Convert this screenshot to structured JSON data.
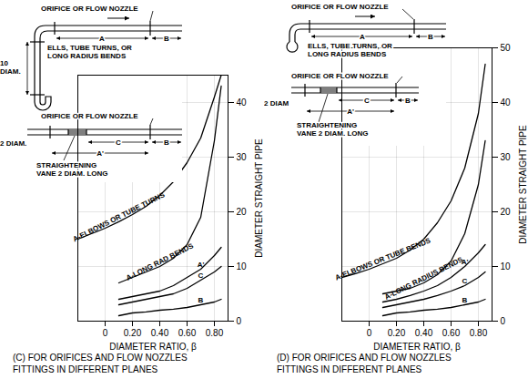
{
  "chart_data": [
    {
      "type": "line",
      "title": "(C) FOR ORIFICES AND FLOW NOZZLES\nFITTINGS IN DIFFERENT PLANES",
      "x_label": "DIAMETER RATIO, β",
      "y_label": "DIAMETER STRAIGHT PIPE",
      "x": [
        -0.2,
        -0.1,
        0,
        0.1,
        0.2,
        0.3,
        0.4,
        0.5,
        0.6,
        0.7,
        0.8,
        0.85
      ],
      "series": [
        {
          "name": "A-ELBOWS OR TUBE TURNS",
          "color": "#000000",
          "values": [
            15,
            16,
            17,
            18.2,
            19.5,
            21,
            23,
            25.5,
            29,
            33.5,
            41,
            45
          ]
        },
        {
          "name": "A-LONG RAD BENDS",
          "color": "#000000",
          "values": [
            null,
            null,
            null,
            7,
            8,
            9,
            10,
            11.5,
            14,
            19,
            33,
            43
          ]
        },
        {
          "name": "A'",
          "color": "#000000",
          "values": [
            null,
            null,
            null,
            4,
            4.5,
            5,
            5.5,
            6.5,
            8,
            9.5,
            12,
            13.5
          ]
        },
        {
          "name": "C",
          "color": "#000000",
          "values": [
            null,
            null,
            null,
            3,
            3.5,
            4,
            4.5,
            5,
            6,
            7.5,
            9,
            10
          ]
        },
        {
          "name": "B",
          "color": "#000000",
          "values": [
            null,
            null,
            null,
            1,
            1.5,
            1.7,
            2,
            2.2,
            2.5,
            3,
            3.5,
            4
          ]
        }
      ],
      "xlim": [
        -0.2,
        0.9
      ],
      "ylim": [
        0,
        45
      ],
      "xticks": [
        0,
        {
          "value": 0.2,
          "label": "0.20"
        },
        {
          "value": 0.4,
          "label": "0.40"
        },
        {
          "value": 0.6,
          "label": "0.60"
        },
        {
          "value": 0.8,
          "label": "0.80"
        }
      ],
      "yticks": [
        0,
        10,
        20,
        30,
        40
      ],
      "grid": true,
      "annotations": [
        "ORIFICE OR FLOW NOZZLE",
        "ELLS, TUBE TURNS, OR\nLONG RADIUS BENDS",
        "10\nDIAM.",
        "A",
        "B",
        "ORIFICE OR FLOW NOZZLE",
        "2 DIAM.",
        "C",
        "B",
        "A'",
        "STRAIGHTENING\nVANE 2 DIAM. LONG"
      ]
    },
    {
      "type": "line",
      "title": "(D) FOR ORIFICES AND FLOW NOZZLES\nFITTINGS IN DIFFERENT PLANES",
      "x_label": "DIAMETER RATIO, β",
      "y_label": "DIAMETER STRAIGHT PIPE",
      "x": [
        -0.2,
        -0.1,
        0,
        0.1,
        0.2,
        0.3,
        0.4,
        0.5,
        0.6,
        0.7,
        0.8,
        0.85
      ],
      "series": [
        {
          "name": "A-ELBOWS OR TUBE BENDS",
          "color": "#000000",
          "values": [
            8,
            8.7,
            9.5,
            10.5,
            11.5,
            13,
            15,
            18,
            22,
            28,
            38,
            47
          ]
        },
        {
          "name": "A-LONG RADIUS BENDS",
          "color": "#000000",
          "values": [
            null,
            null,
            null,
            5,
            5.5,
            6,
            7,
            8.5,
            11,
            16,
            25,
            33
          ]
        },
        {
          "name": "A'",
          "color": "#000000",
          "values": [
            null,
            null,
            null,
            3.5,
            4,
            4.7,
            5.5,
            6.5,
            8,
            10,
            12.5,
            14
          ]
        },
        {
          "name": "C",
          "color": "#000000",
          "values": [
            null,
            null,
            null,
            2.5,
            3,
            3.5,
            4,
            4.7,
            5.5,
            6.5,
            8,
            9
          ]
        },
        {
          "name": "B",
          "color": "#000000",
          "values": [
            null,
            null,
            null,
            1,
            1.5,
            1.7,
            2,
            2.2,
            2.5,
            3,
            3.5,
            4
          ]
        }
      ],
      "xlim": [
        -0.2,
        0.9
      ],
      "ylim": [
        0,
        50
      ],
      "xticks": [
        0,
        {
          "value": 0.2,
          "label": "0.20"
        },
        {
          "value": 0.4,
          "label": "0.40"
        },
        {
          "value": 0.6,
          "label": "0.60"
        },
        {
          "value": 0.8,
          "label": "0.80"
        }
      ],
      "yticks": [
        0,
        10,
        20,
        30,
        40,
        50
      ],
      "grid": true,
      "annotations": [
        "ORIFICE OR FLOW NOZZLE",
        "ELLS, TUBE TURNS, OR\nLONG RADIUS BENDS",
        "A",
        "B",
        "ORIFICE OR FLOW NOZZLE",
        "2 DIAM",
        "C",
        "B",
        "A'",
        "STRAIGHTENING\nVANE 2 DIAM. LONG"
      ]
    }
  ]
}
